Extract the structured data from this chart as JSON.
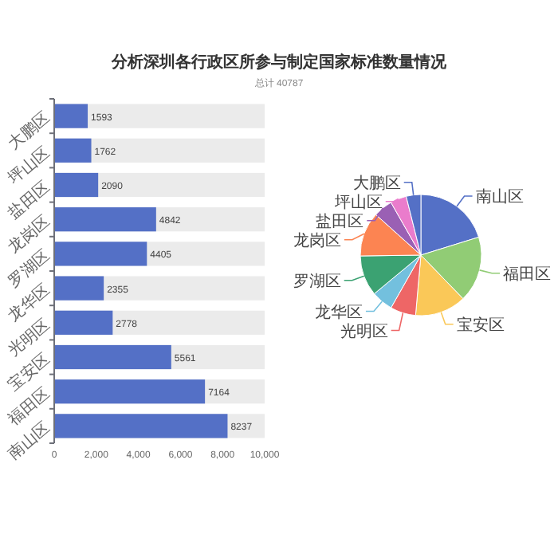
{
  "chart_data": [
    {
      "type": "bar",
      "orientation": "horizontal",
      "title": "分析深圳各行政区所参与制定国家标准数量情况",
      "subtitle": "总计 40787",
      "categories": [
        "大鹏区",
        "坪山区",
        "盐田区",
        "龙岗区",
        "罗湖区",
        "龙华区",
        "光明区",
        "宝安区",
        "福田区",
        "南山区"
      ],
      "values": [
        1593,
        1762,
        2090,
        4842,
        4405,
        2355,
        2778,
        5561,
        7164,
        8237
      ],
      "color": "#5470c6",
      "xlim": [
        0,
        10000
      ],
      "xticks": [
        0,
        {
          "value": 2000,
          "label": "2,000"
        },
        {
          "value": 4000,
          "label": "4,000"
        },
        {
          "value": 6000,
          "label": "6,000"
        },
        {
          "value": 8000,
          "label": "8,000"
        },
        {
          "value": 10000,
          "label": "10,000"
        }
      ],
      "data_labels": true
    },
    {
      "type": "pie",
      "categories": [
        "南山区",
        "福田区",
        "宝安区",
        "光明区",
        "龙华区",
        "罗湖区",
        "龙岗区",
        "盐田区",
        "坪山区",
        "大鹏区"
      ],
      "values": [
        20.21,
        17.56,
        13.63,
        6.81,
        5.77,
        10.8,
        11.87,
        5.12,
        4.32,
        3.91
      ],
      "colors": [
        "#5470c6",
        "#91cc75",
        "#fac858",
        "#ee6666",
        "#73c0de",
        "#3ba272",
        "#fc8452",
        "#9a60b4",
        "#ea7ccc",
        "#5470c6"
      ]
    }
  ]
}
